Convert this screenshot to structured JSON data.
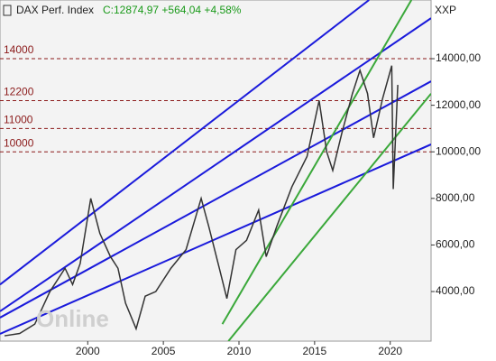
{
  "chart_data": {
    "type": "line",
    "title": "DAX Perf. Index",
    "subtitle": "C:12874,97 +564,04 +4,58%",
    "axis_label": "XXP",
    "watermark": "Online",
    "x": [
      1994.5,
      1995.5,
      1996.5,
      1997.5,
      1998.5,
      1999.0,
      1999.5,
      2000.2,
      2000.8,
      2001.5,
      2002.0,
      2002.5,
      2003.2,
      2003.8,
      2004.5,
      2005.5,
      2006.5,
      2007.5,
      2008.0,
      2008.7,
      2009.2,
      2009.8,
      2010.5,
      2011.3,
      2011.8,
      2012.5,
      2013.5,
      2014.5,
      2015.3,
      2015.8,
      2016.2,
      2016.8,
      2017.5,
      2018.0,
      2018.5,
      2018.9,
      2019.5,
      2020.1,
      2020.2,
      2020.5
    ],
    "series": [
      {
        "name": "DAX",
        "color": "#333333",
        "values": [
          2100,
          2200,
          2600,
          4000,
          5000,
          4300,
          5200,
          8000,
          6500,
          5500,
          5000,
          3500,
          2400,
          3800,
          4000,
          5000,
          5800,
          8000,
          6800,
          5000,
          3700,
          5800,
          6200,
          7500,
          5500,
          6800,
          8500,
          9800,
          12200,
          10000,
          9200,
          10800,
          12500,
          13500,
          12500,
          10600,
          12300,
          13700,
          8400,
          12874.97
        ]
      }
    ],
    "levels": [
      14000,
      12200,
      11000,
      10000
    ],
    "level_color": "#8b1a1a",
    "trendlines": [
      {
        "color": "#1a1adb",
        "x": [
          1994.2,
          2018.6
        ],
        "y": [
          4300,
          16520
        ]
      },
      {
        "color": "#1a1adb",
        "x": [
          1994.2,
          2022.7
        ],
        "y": [
          3150,
          15740
        ]
      },
      {
        "color": "#1a1adb",
        "x": [
          1994.2,
          2022.7
        ],
        "y": [
          2880,
          13030
        ]
      },
      {
        "color": "#1a1adb",
        "x": [
          1994.2,
          2022.7
        ],
        "y": [
          2180,
          10320
        ]
      },
      {
        "color": "#3aa83a",
        "x": [
          2008.9,
          2021.4
        ],
        "y": [
          2600,
          16520
        ]
      },
      {
        "color": "#3aa83a",
        "x": [
          2009.3,
          2022.7
        ],
        "y": [
          1870,
          12500
        ]
      }
    ],
    "xlim": [
      1994.2,
      2022.7
    ],
    "xticks": [
      2000,
      2005,
      2010,
      2015,
      2020
    ],
    "ylim": [
      1870,
      16520
    ],
    "yticks": [
      {
        "value": 4000,
        "label": "4000,00"
      },
      {
        "value": 6000,
        "label": "6000,00"
      },
      {
        "value": 8000,
        "label": "8000,00"
      },
      {
        "value": 10000,
        "label": "10000,00"
      },
      {
        "value": 12000,
        "label": "12000,00"
      },
      {
        "value": 14000,
        "label": "14000,00"
      }
    ]
  }
}
